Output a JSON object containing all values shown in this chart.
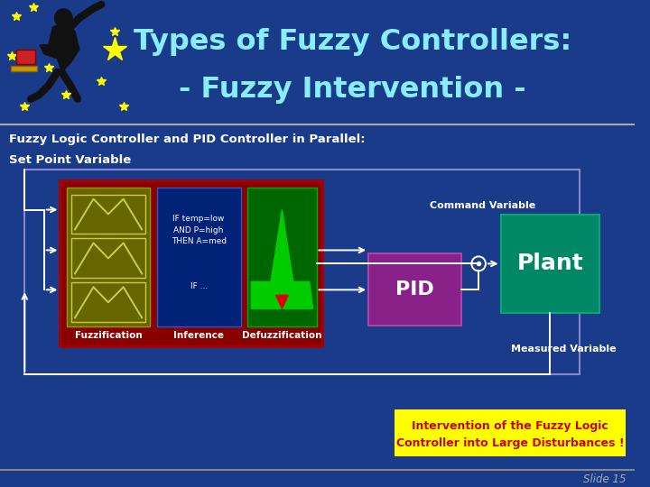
{
  "bg_color": "#1a3a8a",
  "title_line1": "Types of Fuzzy Controllers:",
  "title_line2": "- Fuzzy Intervention -",
  "title_color": "#88eeff",
  "subtitle": "Fuzzy Logic Controller and PID Controller in Parallel:",
  "subtitle_color": "#ffffff",
  "set_point_label": "Set Point Variable",
  "set_point_color": "#ffffff",
  "header_separator_color": "#aaaaaa",
  "slide_number": "Slide 15",
  "slide_number_color": "#aaaaaa",
  "annotation_bg": "#ffff00",
  "annotation_text_line1": "Intervention of the Fuzzy Logic",
  "annotation_text_line2": "Controller into Large Disturbances !",
  "annotation_text_color": "#cc0000",
  "fuzzy_block_bg": "#880000",
  "fuzz_subblock_bg": "#666600",
  "inf_subblock_bg": "#002277",
  "defuzz_subblock_bg": "#006600",
  "fuzz_label": "Fuzzification",
  "inf_label": "Inference",
  "defuzz_label": "Defuzzification",
  "pid_bg": "#882288",
  "pid_text": "PID",
  "plant_bg": "#008866",
  "plant_text": "Plant",
  "command_label": "Command Variable",
  "measured_label": "Measured Variable",
  "arrow_color": "#ffffff",
  "outer_rect_color": "#8888cc",
  "footer_separator_color": "#888888"
}
